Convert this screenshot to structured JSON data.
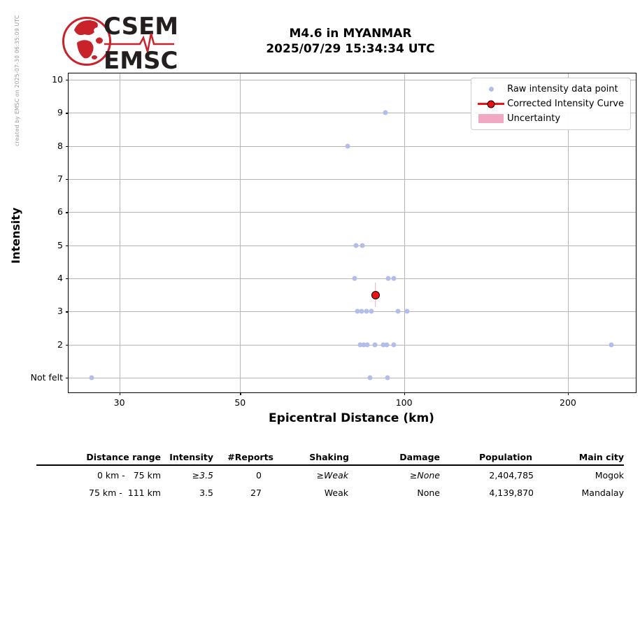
{
  "header": {
    "logo_line1": "CSEM",
    "logo_line2": "EMSC",
    "title_line1": "M4.6 in MYANMAR",
    "title_line2": "2025/07/29 15:34:34 UTC",
    "credit": "created by EMSC on 2025-07-30 06:35:09 UTC"
  },
  "chart_data": {
    "type": "scatter",
    "title": "M4.6 in MYANMAR 2025/07/29 15:34:34 UTC",
    "xlabel": "Epicentral Distance (km)",
    "ylabel": "Intensity",
    "x_scale": "log",
    "xlim": [
      24.2,
      266.5
    ],
    "ylim": [
      0.56,
      10.19
    ],
    "x_ticks": [
      30,
      50,
      100,
      200
    ],
    "y_ticks": [
      {
        "value": 1,
        "label": "Not felt"
      },
      {
        "value": 2,
        "label": "2"
      },
      {
        "value": 3,
        "label": "3"
      },
      {
        "value": 4,
        "label": "4"
      },
      {
        "value": 5,
        "label": "5"
      },
      {
        "value": 6,
        "label": "6"
      },
      {
        "value": 7,
        "label": "7"
      },
      {
        "value": 8,
        "label": "8"
      },
      {
        "value": 9,
        "label": "9"
      },
      {
        "value": 10,
        "label": "10"
      }
    ],
    "grid": true,
    "legend_position": "upper right",
    "colors": {
      "raw_point": "#b3bee8",
      "corrected": "#ee1111",
      "uncertainty": "#f0a8c4",
      "grid": "#b5b5b5"
    },
    "series": [
      {
        "name": "Raw intensity data point",
        "type": "scatter",
        "color": "#b3bee8",
        "points": [
          [
            26.7,
            1
          ],
          [
            86.6,
            1
          ],
          [
            93.2,
            1
          ],
          [
            83.0,
            2
          ],
          [
            84.3,
            2
          ],
          [
            85.5,
            2
          ],
          [
            88.4,
            2
          ],
          [
            91.6,
            2
          ],
          [
            92.9,
            2
          ],
          [
            95.7,
            2
          ],
          [
            240.4,
            2
          ],
          [
            82.0,
            3
          ],
          [
            83.5,
            3
          ],
          [
            85.3,
            3
          ],
          [
            87.0,
            3
          ],
          [
            97.4,
            3
          ],
          [
            101.2,
            3
          ],
          [
            81.1,
            4
          ],
          [
            93.5,
            4
          ],
          [
            95.7,
            4
          ],
          [
            81.6,
            5
          ],
          [
            83.8,
            5
          ],
          [
            78.7,
            8
          ],
          [
            92.4,
            9
          ]
        ]
      },
      {
        "name": "Corrected Intensity Curve",
        "type": "line_marker",
        "color": "#ee1111",
        "points": [
          [
            88.6,
            3.5
          ]
        ],
        "uncertainty_half_width": 0.37
      },
      {
        "name": "Uncertainty",
        "type": "band",
        "color": "#f0a8c4"
      }
    ]
  },
  "table": {
    "headers": [
      "Distance range",
      "Intensity",
      "#Reports",
      "Shaking",
      "Damage",
      "Population",
      "Main city"
    ],
    "rows": [
      {
        "cells": [
          "0 km -   75 km",
          "≥3.5",
          "0",
          "≥Weak",
          "≥None",
          "2,404,785",
          "Mogok"
        ]
      },
      {
        "cells": [
          "75 km -  111 km",
          "3.5",
          "27",
          "Weak",
          "None",
          "4,139,870",
          "Mandalay"
        ]
      }
    ]
  }
}
